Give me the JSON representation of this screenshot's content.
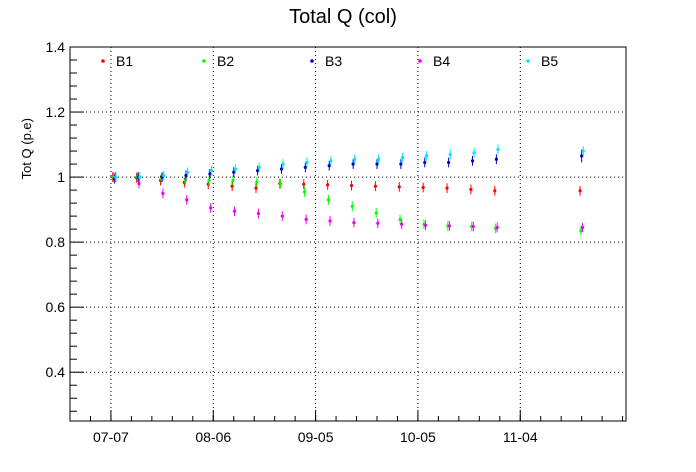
{
  "chart_data": {
    "type": "scatter",
    "title": "Total Q (col)",
    "xlabel": "",
    "ylabel": "Tot Q (p.e)",
    "xlim": [
      "2023-06-25",
      "2023-12-05"
    ],
    "ylim": [
      0.25,
      1.4
    ],
    "x_ticks": [
      {
        "date": "2023-07-07",
        "label": "07-07"
      },
      {
        "date": "2023-08-06",
        "label": "08-06"
      },
      {
        "date": "2023-09-05",
        "label": "09-05"
      },
      {
        "date": "2023-10-05",
        "label": "10-05"
      },
      {
        "date": "2023-11-04",
        "label": "11-04"
      }
    ],
    "y_ticks": [
      0.4,
      0.6,
      0.8,
      1,
      1.2,
      1.4
    ],
    "y_tick_labels": [
      "0.4",
      "0.6",
      "0.8",
      "1",
      "1.2",
      "1.4"
    ],
    "grid": true,
    "legend_position": "top",
    "series": [
      {
        "name": "B1",
        "color": "#ff0000",
        "points": [
          [
            "2023-07-08",
            1.0,
            0.015
          ],
          [
            "2023-07-15",
            0.998,
            0.015
          ],
          [
            "2023-07-22",
            0.99,
            0.015
          ],
          [
            "2023-07-29",
            0.983,
            0.015
          ],
          [
            "2023-08-05",
            0.978,
            0.015
          ],
          [
            "2023-08-12",
            0.972,
            0.015
          ],
          [
            "2023-08-19",
            0.966,
            0.015
          ],
          [
            "2023-08-26",
            0.98,
            0.015
          ],
          [
            "2023-09-02",
            0.978,
            0.015
          ],
          [
            "2023-09-09",
            0.976,
            0.015
          ],
          [
            "2023-09-16",
            0.974,
            0.015
          ],
          [
            "2023-09-23",
            0.972,
            0.015
          ],
          [
            "2023-09-30",
            0.97,
            0.015
          ],
          [
            "2023-10-07",
            0.968,
            0.015
          ],
          [
            "2023-10-14",
            0.966,
            0.015
          ],
          [
            "2023-10-21",
            0.962,
            0.015
          ],
          [
            "2023-10-28",
            0.958,
            0.015
          ],
          [
            "2023-11-22",
            0.958,
            0.015
          ]
        ]
      },
      {
        "name": "B2",
        "color": "#00ff00",
        "points": [
          [
            "2023-07-08",
            1.0,
            0.015
          ],
          [
            "2023-07-15",
            1.0,
            0.015
          ],
          [
            "2023-07-22",
            0.995,
            0.015
          ],
          [
            "2023-07-29",
            0.99,
            0.015
          ],
          [
            "2023-08-05",
            0.99,
            0.015
          ],
          [
            "2023-08-12",
            0.99,
            0.015
          ],
          [
            "2023-08-19",
            0.985,
            0.015
          ],
          [
            "2023-08-26",
            0.98,
            0.015
          ],
          [
            "2023-09-02",
            0.955,
            0.015
          ],
          [
            "2023-09-09",
            0.93,
            0.015
          ],
          [
            "2023-09-16",
            0.91,
            0.015
          ],
          [
            "2023-09-23",
            0.89,
            0.015
          ],
          [
            "2023-09-30",
            0.87,
            0.015
          ],
          [
            "2023-10-07",
            0.855,
            0.015
          ],
          [
            "2023-10-14",
            0.85,
            0.015
          ],
          [
            "2023-10-21",
            0.848,
            0.015
          ],
          [
            "2023-10-28",
            0.842,
            0.015
          ],
          [
            "2023-11-22",
            0.835,
            0.015
          ]
        ]
      },
      {
        "name": "B3",
        "color": "#0000cc",
        "points": [
          [
            "2023-07-08",
            0.995,
            0.015
          ],
          [
            "2023-07-15",
            1.0,
            0.015
          ],
          [
            "2023-07-22",
            1.0,
            0.015
          ],
          [
            "2023-07-29",
            1.005,
            0.015
          ],
          [
            "2023-08-05",
            1.01,
            0.015
          ],
          [
            "2023-08-12",
            1.015,
            0.015
          ],
          [
            "2023-08-19",
            1.02,
            0.015
          ],
          [
            "2023-08-26",
            1.025,
            0.015
          ],
          [
            "2023-09-02",
            1.03,
            0.015
          ],
          [
            "2023-09-09",
            1.035,
            0.015
          ],
          [
            "2023-09-16",
            1.04,
            0.015
          ],
          [
            "2023-09-23",
            1.04,
            0.015
          ],
          [
            "2023-09-30",
            1.04,
            0.015
          ],
          [
            "2023-10-07",
            1.045,
            0.015
          ],
          [
            "2023-10-14",
            1.045,
            0.015
          ],
          [
            "2023-10-21",
            1.05,
            0.015
          ],
          [
            "2023-10-28",
            1.055,
            0.015
          ],
          [
            "2023-11-22",
            1.065,
            0.02
          ]
        ]
      },
      {
        "name": "B4",
        "color": "#ee00ee",
        "points": [
          [
            "2023-07-08",
            1.0,
            0.015
          ],
          [
            "2023-07-15",
            0.98,
            0.015
          ],
          [
            "2023-07-22",
            0.95,
            0.015
          ],
          [
            "2023-07-29",
            0.93,
            0.015
          ],
          [
            "2023-08-05",
            0.905,
            0.015
          ],
          [
            "2023-08-12",
            0.895,
            0.015
          ],
          [
            "2023-08-19",
            0.888,
            0.015
          ],
          [
            "2023-08-26",
            0.88,
            0.015
          ],
          [
            "2023-09-02",
            0.87,
            0.015
          ],
          [
            "2023-09-09",
            0.865,
            0.015
          ],
          [
            "2023-09-16",
            0.86,
            0.015
          ],
          [
            "2023-09-23",
            0.858,
            0.015
          ],
          [
            "2023-09-30",
            0.855,
            0.015
          ],
          [
            "2023-10-07",
            0.852,
            0.015
          ],
          [
            "2023-10-14",
            0.85,
            0.015
          ],
          [
            "2023-10-21",
            0.848,
            0.015
          ],
          [
            "2023-10-28",
            0.845,
            0.015
          ],
          [
            "2023-11-22",
            0.845,
            0.015
          ]
        ]
      },
      {
        "name": "B5",
        "color": "#00e5ee",
        "points": [
          [
            "2023-07-08",
            1.0,
            0.015
          ],
          [
            "2023-07-15",
            1.0,
            0.015
          ],
          [
            "2023-07-22",
            1.005,
            0.015
          ],
          [
            "2023-07-29",
            1.015,
            0.015
          ],
          [
            "2023-08-05",
            1.02,
            0.015
          ],
          [
            "2023-08-12",
            1.025,
            0.015
          ],
          [
            "2023-08-19",
            1.03,
            0.015
          ],
          [
            "2023-08-26",
            1.04,
            0.015
          ],
          [
            "2023-09-02",
            1.045,
            0.015
          ],
          [
            "2023-09-09",
            1.05,
            0.015
          ],
          [
            "2023-09-16",
            1.055,
            0.015
          ],
          [
            "2023-09-23",
            1.055,
            0.015
          ],
          [
            "2023-09-30",
            1.06,
            0.015
          ],
          [
            "2023-10-07",
            1.065,
            0.015
          ],
          [
            "2023-10-14",
            1.07,
            0.015
          ],
          [
            "2023-10-21",
            1.075,
            0.015
          ],
          [
            "2023-10-28",
            1.085,
            0.015
          ],
          [
            "2023-11-22",
            1.08,
            0.015
          ]
        ]
      }
    ]
  }
}
